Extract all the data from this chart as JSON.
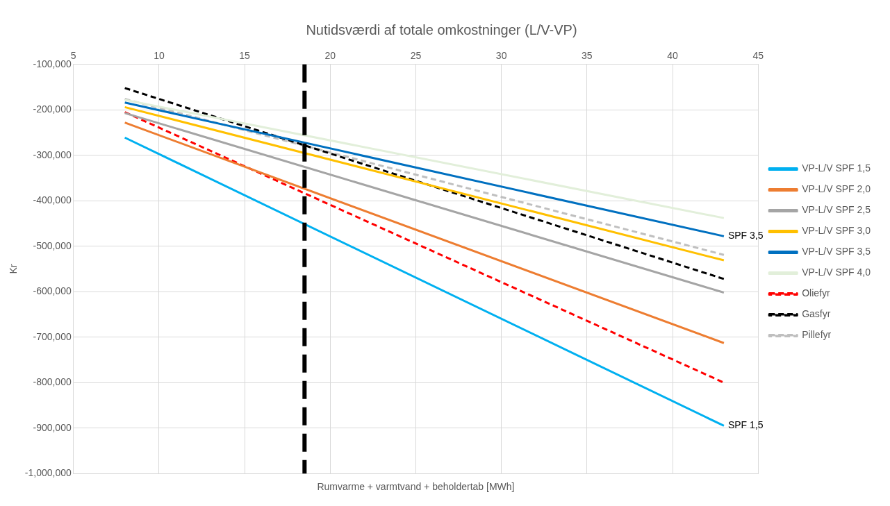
{
  "chart_data": {
    "type": "line",
    "title": "Nutidsværdi af totale omkostninger (L/V-VP)",
    "xlabel": "Rumvarme + varmtvand + beholdertab [MWh]",
    "ylabel": "Kr",
    "xlim": [
      5,
      45
    ],
    "xticks": [
      5,
      10,
      15,
      20,
      25,
      30,
      35,
      40,
      45
    ],
    "ylim": [
      -1000000,
      -100000
    ],
    "yticks": [
      {
        "value": -1000000,
        "label": "-1,000,000"
      },
      {
        "value": -900000,
        "label": "-900,000"
      },
      {
        "value": -800000,
        "label": "-800,000"
      },
      {
        "value": -700000,
        "label": "-700,000"
      },
      {
        "value": -600000,
        "label": "-600,000"
      },
      {
        "value": -500000,
        "label": "-500,000"
      },
      {
        "value": -400000,
        "label": "-400,000"
      },
      {
        "value": -300000,
        "label": "-300,000"
      },
      {
        "value": -200000,
        "label": "-200,000"
      },
      {
        "value": -100000,
        "label": "-100,000"
      }
    ],
    "grid": true,
    "legend": "right",
    "marker": "none",
    "x": [
      8,
      43
    ],
    "series": [
      {
        "name": "VP-L/V SPF 1,5",
        "color": "#00b0f0",
        "values": [
          -261000,
          -895000
        ]
      },
      {
        "name": "VP-L/V SPF 2,0",
        "color": "#ed7d31",
        "values": [
          -228000,
          -713000
        ]
      },
      {
        "name": "VP-L/V SPF 2,5",
        "color": "#a5a5a5",
        "values": [
          -207000,
          -602000
        ]
      },
      {
        "name": "VP-L/V SPF 3,0",
        "color": "#ffc000",
        "values": [
          -194000,
          -531000
        ]
      },
      {
        "name": "VP-L/V SPF 3,5",
        "color": "#0070c0",
        "values": [
          -184000,
          -478000
        ]
      },
      {
        "name": "VP-L/V SPF 4,0",
        "color": "#e2efda",
        "values": [
          -178000,
          -438000
        ]
      },
      {
        "name": "Oliefyr",
        "color": "#ff0000",
        "line_style": "dashed",
        "values": [
          -205000,
          -800000
        ]
      },
      {
        "name": "Gasfyr",
        "color": "#000000",
        "line_style": "dashed",
        "values": [
          -152000,
          -572000
        ]
      },
      {
        "name": "Pillefyr",
        "color": "#bfbfbf",
        "line_style": "dashed",
        "values": [
          -176000,
          -519000
        ]
      }
    ],
    "ref_lines": [
      {
        "axis": "x",
        "value": 18.5,
        "color": "#000000",
        "line_style": "dashed"
      }
    ],
    "annotations": [
      {
        "text": "SPF 3,5",
        "x": 43,
        "y": -478000
      },
      {
        "text": "SPF 1,5",
        "x": 43,
        "y": -895000
      }
    ]
  }
}
